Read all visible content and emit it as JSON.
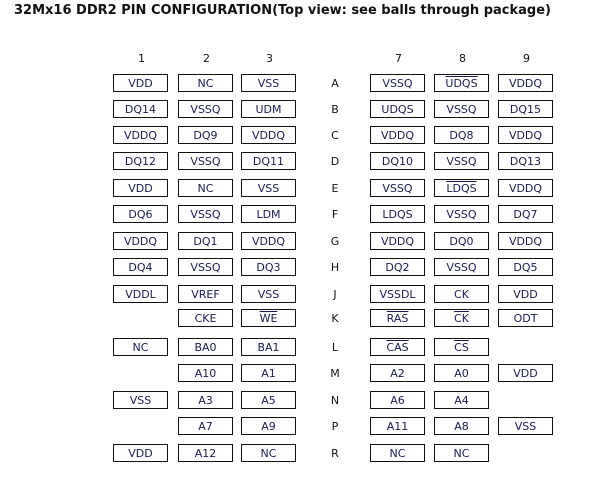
{
  "title": "32Mx16 DDR2 PIN CONFIGURATION(Top view: see balls through package)",
  "columns": [
    "1",
    "2",
    "3",
    "7",
    "8",
    "9"
  ],
  "rows": [
    {
      "label": "A",
      "pins": [
        {
          "n": "VDD"
        },
        {
          "n": "NC"
        },
        {
          "n": "VSS"
        },
        {
          "n": "VSSQ"
        },
        {
          "n": "UDQS",
          "bar": true
        },
        {
          "n": "VDDQ"
        }
      ]
    },
    {
      "label": "B",
      "pins": [
        {
          "n": "DQ14"
        },
        {
          "n": "VSSQ"
        },
        {
          "n": "UDM"
        },
        {
          "n": "UDQS"
        },
        {
          "n": "VSSQ"
        },
        {
          "n": "DQ15"
        }
      ]
    },
    {
      "label": "C",
      "pins": [
        {
          "n": "VDDQ"
        },
        {
          "n": "DQ9"
        },
        {
          "n": "VDDQ"
        },
        {
          "n": "VDDQ"
        },
        {
          "n": "DQ8"
        },
        {
          "n": "VDDQ"
        }
      ]
    },
    {
      "label": "D",
      "pins": [
        {
          "n": "DQ12"
        },
        {
          "n": "VSSQ"
        },
        {
          "n": "DQ11"
        },
        {
          "n": "DQ10"
        },
        {
          "n": "VSSQ"
        },
        {
          "n": "DQ13"
        }
      ]
    },
    {
      "label": "E",
      "pins": [
        {
          "n": "VDD"
        },
        {
          "n": "NC"
        },
        {
          "n": "VSS"
        },
        {
          "n": "VSSQ"
        },
        {
          "n": "LDQS",
          "bar": true
        },
        {
          "n": "VDDQ"
        }
      ]
    },
    {
      "label": "F",
      "pins": [
        {
          "n": "DQ6"
        },
        {
          "n": "VSSQ"
        },
        {
          "n": "LDM"
        },
        {
          "n": "LDQS"
        },
        {
          "n": "VSSQ"
        },
        {
          "n": "DQ7"
        }
      ]
    },
    {
      "label": "G",
      "pins": [
        {
          "n": "VDDQ"
        },
        {
          "n": "DQ1"
        },
        {
          "n": "VDDQ"
        },
        {
          "n": "VDDQ"
        },
        {
          "n": "DQ0"
        },
        {
          "n": "VDDQ"
        }
      ]
    },
    {
      "label": "H",
      "pins": [
        {
          "n": "DQ4"
        },
        {
          "n": "VSSQ"
        },
        {
          "n": "DQ3"
        },
        {
          "n": "DQ2"
        },
        {
          "n": "VSSQ"
        },
        {
          "n": "DQ5"
        }
      ]
    },
    {
      "label": "J",
      "pins": [
        {
          "n": "VDDL"
        },
        {
          "n": "VREF"
        },
        {
          "n": "VSS"
        },
        {
          "n": "VSSDL"
        },
        {
          "n": "CK"
        },
        {
          "n": "VDD"
        }
      ]
    },
    {
      "label": "K",
      "pins": [
        null,
        {
          "n": "CKE"
        },
        {
          "n": "WE",
          "bar": true
        },
        {
          "n": "RAS",
          "bar": true
        },
        {
          "n": "CK",
          "bar": true
        },
        {
          "n": "ODT"
        }
      ]
    },
    {
      "label": "L",
      "pins": [
        {
          "n": "NC"
        },
        {
          "n": "BA0"
        },
        {
          "n": "BA1"
        },
        {
          "n": "CAS",
          "bar": true
        },
        {
          "n": "CS",
          "bar": true
        },
        null
      ]
    },
    {
      "label": "M",
      "pins": [
        null,
        {
          "n": "A10"
        },
        {
          "n": "A1"
        },
        {
          "n": "A2"
        },
        {
          "n": "A0"
        },
        {
          "n": "VDD"
        }
      ]
    },
    {
      "label": "N",
      "pins": [
        {
          "n": "VSS"
        },
        {
          "n": "A3"
        },
        {
          "n": "A5"
        },
        {
          "n": "A6"
        },
        {
          "n": "A4"
        },
        null
      ]
    },
    {
      "label": "P",
      "pins": [
        null,
        {
          "n": "A7"
        },
        {
          "n": "A9"
        },
        {
          "n": "A11"
        },
        {
          "n": "A8"
        },
        {
          "n": "VSS"
        }
      ]
    },
    {
      "label": "R",
      "pins": [
        {
          "n": "VDD"
        },
        {
          "n": "A12"
        },
        {
          "n": "NC"
        },
        {
          "n": "NC"
        },
        {
          "n": "NC"
        },
        null
      ]
    }
  ]
}
